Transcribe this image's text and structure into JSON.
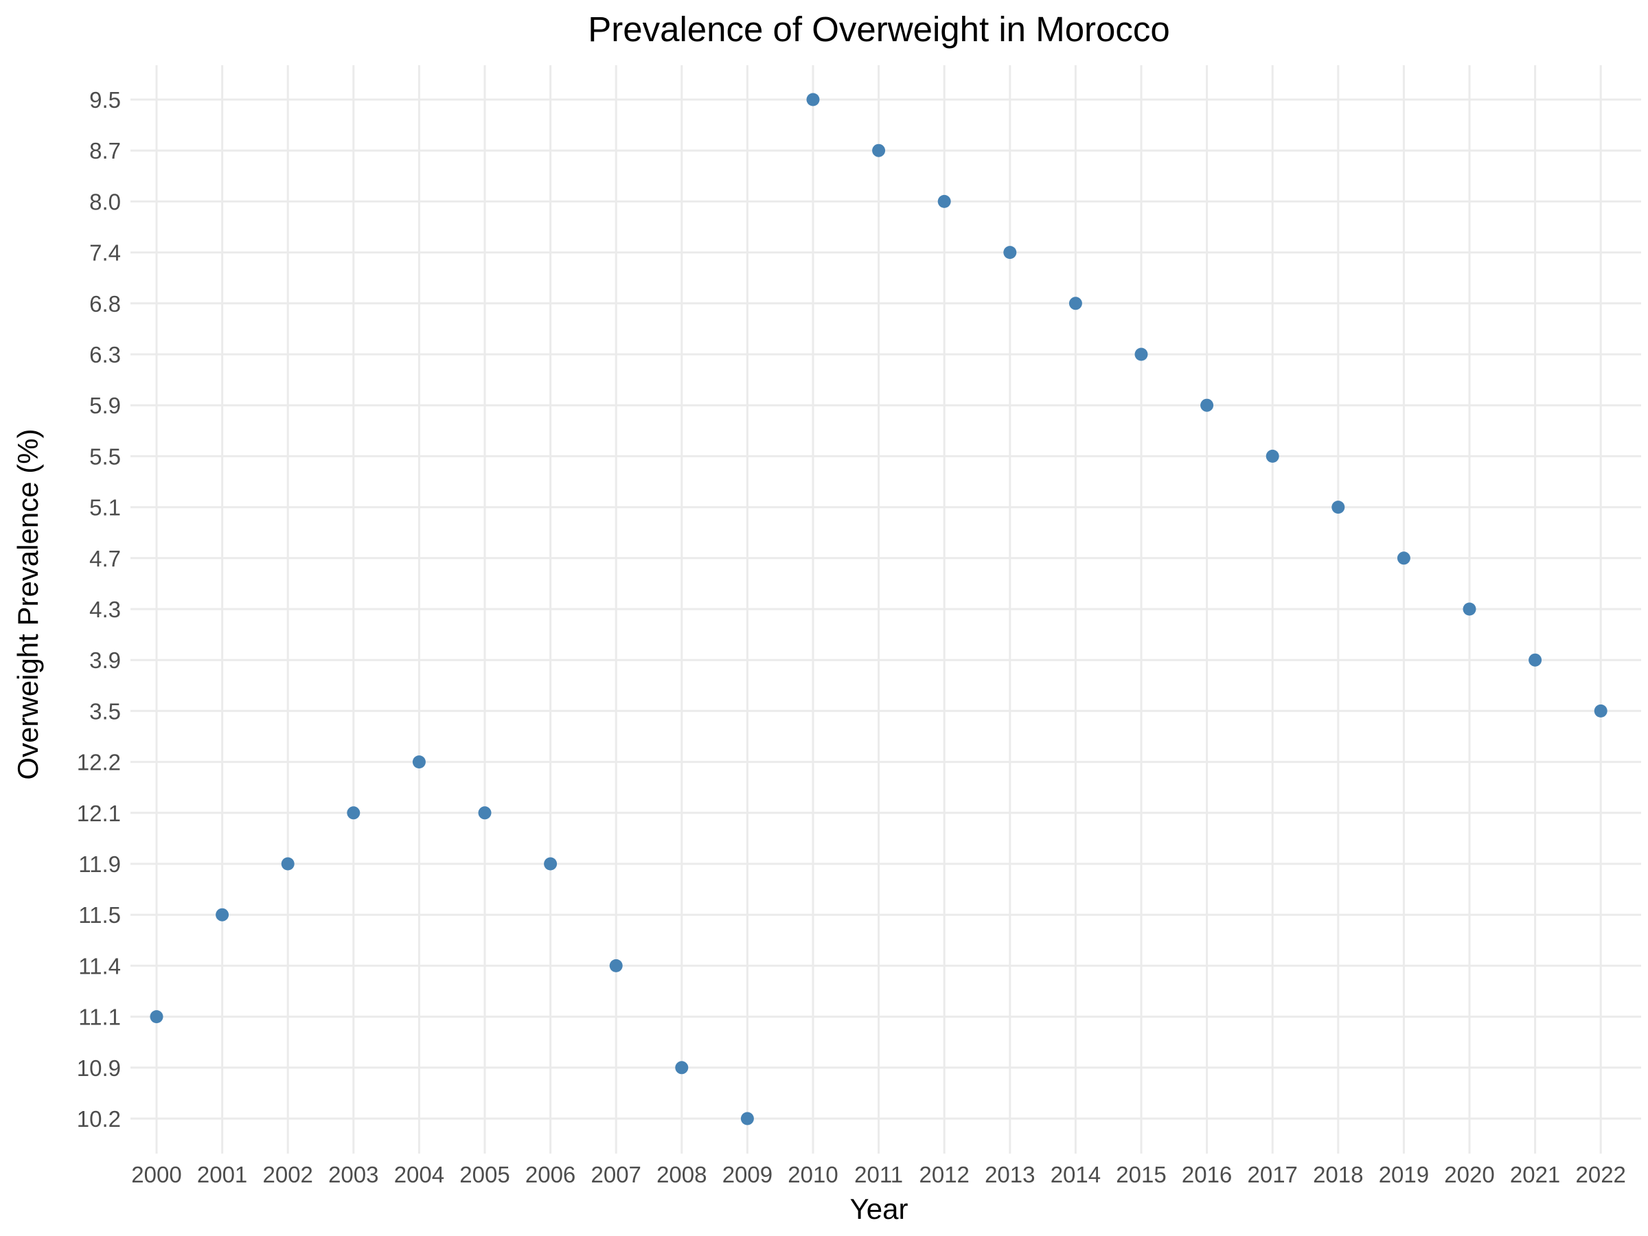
{
  "chart_data": {
    "type": "scatter",
    "title": "Prevalence of Overweight in Morocco",
    "xlabel": "Year",
    "ylabel": "Overweight Prevalence (%)",
    "grid": true,
    "legend": "none",
    "point_color": "#4682b4",
    "y_scale": "categorical",
    "x_ticks": [
      "2000",
      "2001",
      "2002",
      "2003",
      "2004",
      "2005",
      "2006",
      "2007",
      "2008",
      "2009",
      "2010",
      "2011",
      "2012",
      "2013",
      "2014",
      "2015",
      "2016",
      "2017",
      "2018",
      "2019",
      "2020",
      "2021",
      "2022"
    ],
    "y_ticks": [
      "10.2",
      "10.9",
      "11.1",
      "11.4",
      "11.5",
      "11.9",
      "12.1",
      "12.2",
      "3.5",
      "3.9",
      "4.3",
      "4.7",
      "5.1",
      "5.5",
      "5.9",
      "6.3",
      "6.8",
      "7.4",
      "8.0",
      "8.7",
      "9.5"
    ],
    "x": [
      "2000",
      "2001",
      "2002",
      "2003",
      "2004",
      "2005",
      "2006",
      "2007",
      "2008",
      "2009",
      "2010",
      "2011",
      "2012",
      "2013",
      "2014",
      "2015",
      "2016",
      "2017",
      "2018",
      "2019",
      "2020",
      "2021",
      "2022"
    ],
    "y": [
      "11.1",
      "11.5",
      "11.9",
      "12.1",
      "12.2",
      "12.1",
      "11.9",
      "11.4",
      "10.9",
      "10.2",
      "9.5",
      "8.7",
      "8.0",
      "7.4",
      "6.8",
      "6.3",
      "5.9",
      "5.5",
      "5.1",
      "4.7",
      "4.3",
      "3.9",
      "3.5"
    ]
  }
}
